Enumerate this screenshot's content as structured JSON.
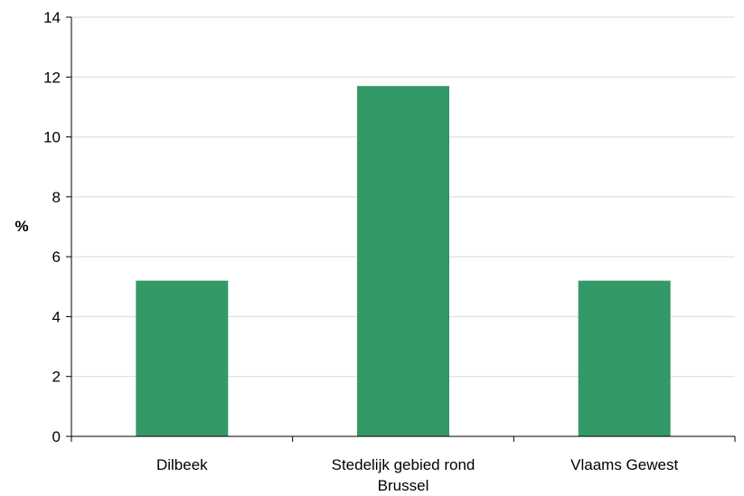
{
  "chart_data": {
    "type": "bar",
    "categories": [
      "Dilbeek",
      "Stedelijk gebied rond Brussel",
      "Vlaams Gewest"
    ],
    "category_lines": [
      [
        "Dilbeek"
      ],
      [
        "Stedelijk gebied rond",
        "Brussel"
      ],
      [
        "Vlaams Gewest"
      ]
    ],
    "values": [
      5.2,
      11.7,
      5.2
    ],
    "ylabel": "%",
    "ylim": [
      0,
      14
    ],
    "yticks": [
      0,
      2,
      4,
      6,
      8,
      10,
      12,
      14
    ],
    "grid": true,
    "legend": "none",
    "bar_color": "#339966",
    "grid_color": "#d9d9d9",
    "axis_color": "#000000"
  }
}
